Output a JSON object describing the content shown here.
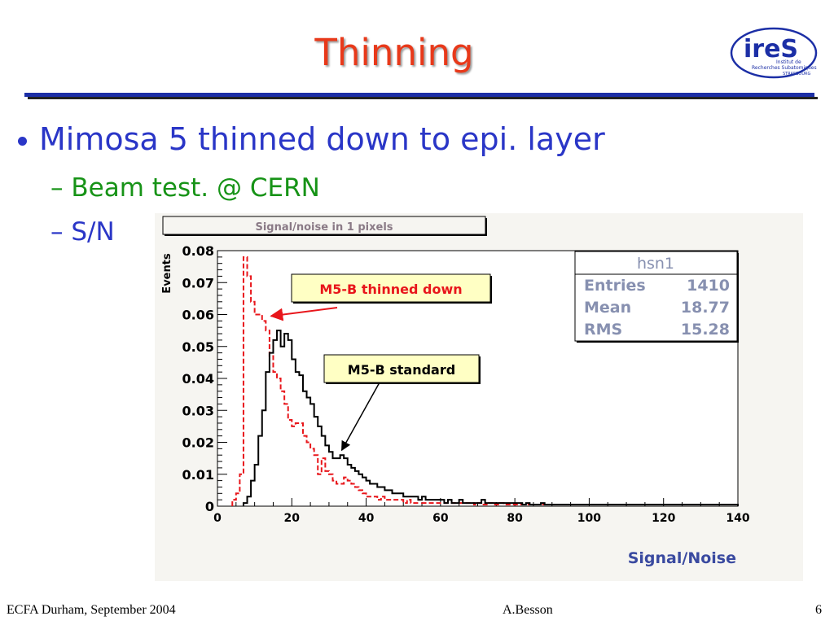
{
  "slide": {
    "title": "Thinning",
    "bullet": "Mimosa 5 thinned down to epi. layer",
    "sub_bullets": [
      "– Beam test. @ CERN",
      "– S/N"
    ]
  },
  "logo": {
    "text": "ireS",
    "line1": "Institut de",
    "line2": "Recherches Subatomiques",
    "line3": "STRASBOURG",
    "icon": "ires-logo"
  },
  "footer": {
    "left": "ECFA Durham, September 2004",
    "center": "A.Besson",
    "right": "6"
  },
  "colors": {
    "title": "#e8391a",
    "bullet": "#2a36c7",
    "sub_green": "#179317",
    "rule": "#1c2fa6",
    "thinned": "#e8161b",
    "standard": "#000000",
    "stats_text": "#8790b0",
    "chart_label": "#3a4aa0"
  },
  "chart_data": {
    "type": "histogram",
    "title": "Signal/noise in 1 pixels",
    "xlabel": "Signal/Noise",
    "ylabel": "Events",
    "xlim": [
      0,
      140
    ],
    "ylim": [
      0,
      0.08
    ],
    "xticks": [
      "0",
      "20",
      "40",
      "60",
      "80",
      "100",
      "120",
      "140"
    ],
    "yticks": [
      "0",
      "0.01",
      "0.02",
      "0.03",
      "0.04",
      "0.05",
      "0.06",
      "0.07",
      "0.08"
    ],
    "bin_width": 1,
    "series": [
      {
        "name": "M5-B standard",
        "style": "solid",
        "color": "#000000",
        "x_start": 7,
        "values": [
          0.001,
          0.003,
          0.008,
          0.013,
          0.022,
          0.03,
          0.042,
          0.048,
          0.052,
          0.055,
          0.05,
          0.054,
          0.052,
          0.046,
          0.042,
          0.041,
          0.036,
          0.034,
          0.032,
          0.028,
          0.025,
          0.022,
          0.019,
          0.017,
          0.015,
          0.015,
          0.016,
          0.015,
          0.013,
          0.012,
          0.011,
          0.01,
          0.009,
          0.008,
          0.007,
          0.007,
          0.006,
          0.006,
          0.005,
          0.005,
          0.004,
          0.004,
          0.004,
          0.003,
          0.003,
          0.003,
          0.003,
          0.002,
          0.003,
          0.002,
          0.002,
          0.002,
          0.002,
          0.002,
          0.001,
          0.002,
          0.001,
          0.001,
          0.002,
          0.001,
          0.001,
          0.001,
          0.001,
          0.001,
          0.002,
          0.001,
          0.001,
          0.001,
          0.001,
          0.001,
          0.001,
          0.001,
          0.001,
          0.001,
          0.001,
          0.0005,
          0.001,
          0.0005,
          0.0005,
          0.0005,
          0.001,
          0.0005,
          0.0005,
          0.0005,
          0.0005,
          0.0005,
          0.0005,
          0.0005,
          0.0005,
          0.0005,
          0.0005,
          0.0005,
          0.0005,
          0.0005,
          0.0005,
          0.0005,
          0.0005,
          0.0005,
          0.0005,
          0.0005,
          0.0005,
          0.0005,
          0.0005,
          0.0005,
          0.0005,
          0.0005,
          0.0005,
          0.0005,
          0.0005,
          0.0005,
          0.0005,
          0.0005,
          0.0005,
          0.0005,
          0.0005,
          0.0005,
          0.0005,
          0.0005,
          0.0005,
          0.0005,
          0.0005,
          0.0005,
          0.0005,
          0.0005,
          0.0005,
          0.0005,
          0.0005,
          0.0005,
          0.0005,
          0.0005,
          0.0005,
          0.0005,
          0.0005
        ]
      },
      {
        "name": "M5-B thinned down",
        "style": "dashed",
        "color": "#e8161b",
        "x_start": 4,
        "values": [
          0.002,
          0.004,
          0.01,
          0.078,
          0.072,
          0.064,
          0.06,
          0.06,
          0.058,
          0.055,
          0.047,
          0.042,
          0.04,
          0.036,
          0.032,
          0.027,
          0.025,
          0.026,
          0.026,
          0.022,
          0.02,
          0.018,
          0.016,
          0.01,
          0.015,
          0.011,
          0.01,
          0.008,
          0.007,
          0.007,
          0.009,
          0.008,
          0.007,
          0.006,
          0.005,
          0.004,
          0.003,
          0.003,
          0.003,
          0.002,
          0.003,
          0.002,
          0.002,
          0.002,
          0.002,
          0.002,
          0.001,
          0.002,
          0.001,
          0.001,
          0.002,
          0.001,
          0.001,
          0.001,
          0.001,
          0.001,
          0.001,
          0.001,
          0.001,
          0.001,
          0.001,
          0.001,
          0.001,
          0.001,
          0.001,
          0.0005,
          0.001,
          0.0005,
          0.0005,
          0.001,
          0.0005,
          0.0005,
          0.001,
          0.0005,
          0.0005,
          0.0005,
          0.0005,
          0.0005,
          0.0005,
          0.0005,
          0.0005,
          0.0005,
          0.0005,
          0.0005,
          0.0005,
          0.0005,
          0.0005,
          0.0005,
          0.0005,
          0.0005,
          0.0005,
          0.0005,
          0.0005,
          0.0005,
          0.0005,
          0.0005,
          0.0005,
          0.0005,
          0.0005,
          0.0005,
          0.0005,
          0.0005,
          0.0005,
          0.0005,
          0.0005,
          0.0005,
          0.0005,
          0.0005,
          0.0005,
          0.0005,
          0.0005,
          0.0005,
          0.0005,
          0.0005,
          0.0005,
          0.0005,
          0.0005,
          0.0005,
          0.0005,
          0.0005,
          0.0005,
          0.0005,
          0.0005,
          0.0005,
          0.0005,
          0.0005,
          0.0005,
          0.0005,
          0.0005,
          0.0005,
          0.0005,
          0.0005,
          0.0005,
          0.0005,
          0.0005,
          0.0005
        ]
      }
    ],
    "stats": {
      "name": "hsn1",
      "rows": [
        {
          "label": "Entries",
          "value": "1410"
        },
        {
          "label": "Mean",
          "value": "18.77"
        },
        {
          "label": "RMS",
          "value": "15.28"
        }
      ]
    },
    "annotations": [
      {
        "text": "M5-B thinned down",
        "target_series": "M5-B thinned down",
        "points_to": [
          14,
          0.058
        ]
      },
      {
        "text": "M5-B standard",
        "target_series": "M5-B standard",
        "points_to": [
          33,
          0.016
        ]
      }
    ],
    "grid": false,
    "legend": "none"
  }
}
